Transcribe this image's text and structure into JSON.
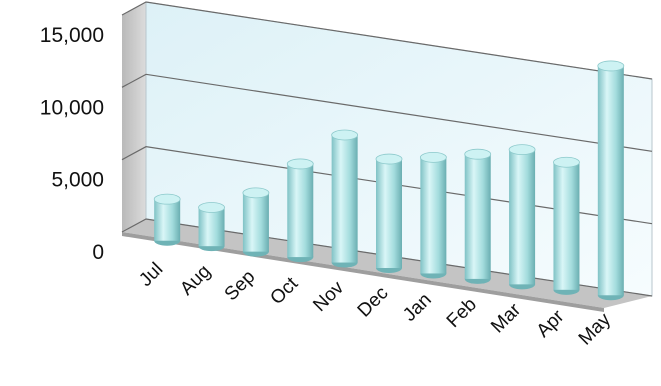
{
  "chart_data": {
    "type": "bar",
    "style": "3d-cylinder",
    "categories": [
      "Jul",
      "Aug",
      "Sep",
      "Oct",
      "Nov",
      "Dec",
      "Jan",
      "Feb",
      "Mar",
      "Apr",
      "May"
    ],
    "series": [
      {
        "values": [
          2900,
          2700,
          4100,
          6500,
          8900,
          7600,
          8100,
          8700,
          9400,
          8900,
          16000
        ]
      }
    ],
    "ylim": [
      0,
      15000
    ],
    "y_ticks": [
      "0",
      "5,000",
      "10,000",
      "15,000"
    ],
    "grid": true,
    "legend": "none",
    "colors": {
      "bar": "#a8dfe0",
      "bar_dark": "#6fb3b6",
      "bar_top": "#cdf2f3",
      "back_wall": "#eaf7fb",
      "side_wall": "#cfcfcf",
      "floor": "#c4c4c4",
      "grid": "#6a6a6a"
    }
  }
}
